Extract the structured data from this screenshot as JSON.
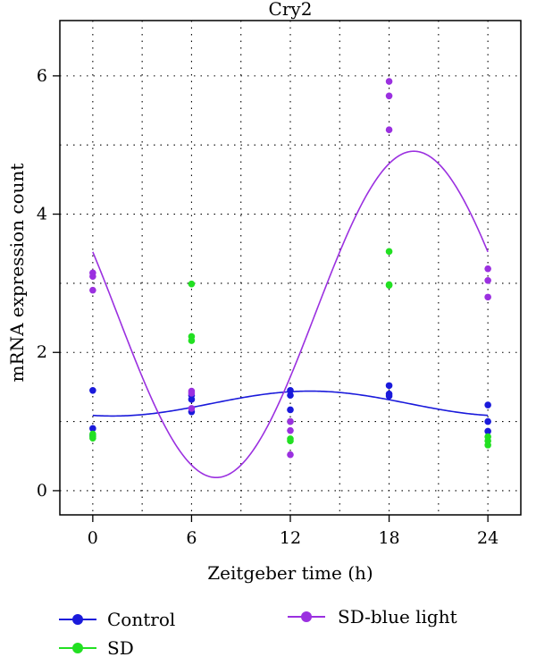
{
  "chart_data": {
    "type": "scatter",
    "title": "Cry2",
    "xlabel": "Zeitgeber time (h)",
    "ylabel": "mRNA expression count",
    "xlim": [
      -2,
      26
    ],
    "ylim": [
      -0.35,
      6.8
    ],
    "xticks": [
      0,
      6,
      12,
      18,
      24
    ],
    "yticks": [
      0,
      2,
      4,
      6
    ],
    "grid": true,
    "legend_position": "bottom",
    "series": [
      {
        "name": "Control",
        "color": "#1a1adb",
        "points": [
          {
            "x": 0,
            "y": 1.45
          },
          {
            "x": 0,
            "y": 0.9
          },
          {
            "x": 0,
            "y": 0.8
          },
          {
            "x": 6,
            "y": 1.38
          },
          {
            "x": 6,
            "y": 1.32
          },
          {
            "x": 6,
            "y": 1.14
          },
          {
            "x": 12,
            "y": 1.45
          },
          {
            "x": 12,
            "y": 1.38
          },
          {
            "x": 12,
            "y": 1.17
          },
          {
            "x": 18,
            "y": 1.52
          },
          {
            "x": 18,
            "y": 1.4
          },
          {
            "x": 18,
            "y": 1.37
          },
          {
            "x": 24,
            "y": 1.24
          },
          {
            "x": 24,
            "y": 1.0
          },
          {
            "x": 24,
            "y": 0.86
          }
        ],
        "fit": {
          "mean": 1.26,
          "amplitude": 0.18,
          "peak_time": 13.2,
          "period": 24
        }
      },
      {
        "name": "SD",
        "color": "#22e022",
        "points": [
          {
            "x": 0,
            "y": 0.82
          },
          {
            "x": 0,
            "y": 0.78
          },
          {
            "x": 0,
            "y": 0.76
          },
          {
            "x": 6,
            "y": 2.99
          },
          {
            "x": 6,
            "y": 2.23
          },
          {
            "x": 6,
            "y": 2.17
          },
          {
            "x": 12,
            "y": 1.0
          },
          {
            "x": 12,
            "y": 0.75
          },
          {
            "x": 12,
            "y": 0.72
          },
          {
            "x": 18,
            "y": 3.46
          },
          {
            "x": 18,
            "y": 2.98
          },
          {
            "x": 18,
            "y": 2.97
          },
          {
            "x": 24,
            "y": 0.78
          },
          {
            "x": 24,
            "y": 0.72
          },
          {
            "x": 24,
            "y": 0.66
          }
        ]
      },
      {
        "name": "SD-blue light",
        "color": "#9b30e0",
        "points": [
          {
            "x": 0,
            "y": 3.15
          },
          {
            "x": 0,
            "y": 3.1
          },
          {
            "x": 0,
            "y": 2.9
          },
          {
            "x": 6,
            "y": 1.44
          },
          {
            "x": 6,
            "y": 1.41
          },
          {
            "x": 6,
            "y": 1.19
          },
          {
            "x": 12,
            "y": 1.0
          },
          {
            "x": 12,
            "y": 0.87
          },
          {
            "x": 12,
            "y": 0.52
          },
          {
            "x": 18,
            "y": 5.92
          },
          {
            "x": 18,
            "y": 5.71
          },
          {
            "x": 18,
            "y": 5.22
          },
          {
            "x": 24,
            "y": 3.21
          },
          {
            "x": 24,
            "y": 3.04
          },
          {
            "x": 24,
            "y": 2.8
          }
        ],
        "fit": {
          "mean": 2.55,
          "amplitude": 2.36,
          "peak_time": 19.5,
          "period": 24
        }
      }
    ]
  },
  "legend": {
    "items": [
      {
        "label": "Control",
        "color": "#1a1adb"
      },
      {
        "label": "SD",
        "color": "#22e022"
      },
      {
        "label": "SD-blue light",
        "color": "#9b30e0"
      }
    ]
  }
}
